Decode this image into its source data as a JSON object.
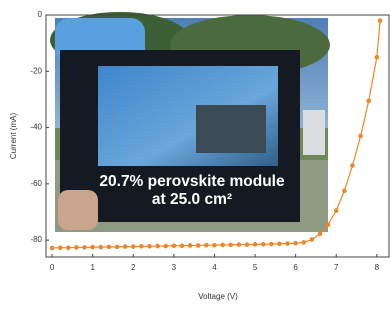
{
  "chart_data": {
    "type": "line",
    "xlabel": "Voltage (V)",
    "ylabel": "Current (mA)",
    "x": [
      0,
      0.2,
      0.4,
      0.6,
      0.8,
      1.0,
      1.2,
      1.4,
      1.6,
      1.8,
      2.0,
      2.2,
      2.4,
      2.6,
      2.8,
      3.0,
      3.2,
      3.4,
      3.6,
      3.8,
      4.0,
      4.2,
      4.4,
      4.6,
      4.8,
      5.0,
      5.2,
      5.4,
      5.6,
      5.8,
      6.0,
      6.2,
      6.4,
      6.6,
      6.8,
      7.0,
      7.2,
      7.4,
      7.6,
      7.8,
      8.0,
      8.08
    ],
    "values": [
      -82.8,
      -82.7,
      -82.7,
      -82.6,
      -82.6,
      -82.5,
      -82.5,
      -82.4,
      -82.4,
      -82.3,
      -82.3,
      -82.2,
      -82.2,
      -82.1,
      -82.1,
      -82.0,
      -82.0,
      -81.9,
      -81.9,
      -81.8,
      -81.8,
      -81.7,
      -81.7,
      -81.6,
      -81.6,
      -81.5,
      -81.5,
      -81.4,
      -81.3,
      -81.2,
      -81.1,
      -80.8,
      -79.8,
      -77.8,
      -74.5,
      -69.5,
      -62.5,
      -53.5,
      -43,
      -30.5,
      -15,
      -2
    ],
    "color": "#f0862a",
    "xlim": [
      -0.15,
      8.3
    ],
    "ylim": [
      -86,
      0
    ],
    "xticks": [
      0,
      1,
      2,
      3,
      4,
      5,
      6,
      7,
      8
    ],
    "yticks": [
      0,
      -20,
      -40,
      -60,
      -80
    ],
    "annotation": [
      "20.7% perovskite module",
      "at 25.0 cm²"
    ]
  }
}
